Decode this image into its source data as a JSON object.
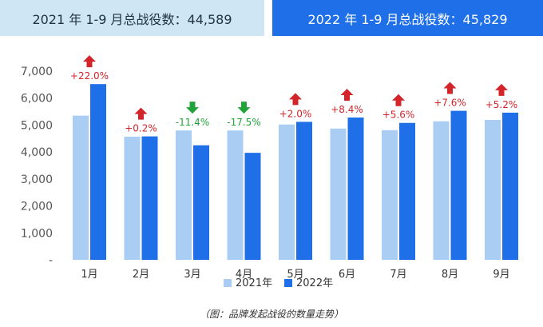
{
  "header": {
    "left": "2021 年 1-9 月总战役数：44,589",
    "right": "2022 年 1-9 月总战役数：45,829"
  },
  "caption": "（图：品牌发起战役的数量走势）",
  "colors": {
    "series_2021": "#a9cdf3",
    "series_2022": "#1e6fe8",
    "up": "#d3242a",
    "down": "#22a33a",
    "banner_left": "#cfe6f5",
    "banner_right": "#1e6fe8"
  },
  "chart_data": {
    "type": "bar",
    "categories": [
      "1月",
      "2月",
      "3月",
      "4月",
      "5月",
      "6月",
      "7月",
      "8月",
      "9月"
    ],
    "series": [
      {
        "name": "2021年",
        "values": [
          5350,
          4570,
          4800,
          4800,
          5020,
          4870,
          4810,
          5140,
          5190
        ]
      },
      {
        "name": "2022年",
        "values": [
          6520,
          4580,
          4250,
          3970,
          5120,
          5280,
          5080,
          5530,
          5460
        ]
      }
    ],
    "annotations": [
      {
        "text": "+22.0%",
        "direction": "up"
      },
      {
        "text": "+0.2%",
        "direction": "up"
      },
      {
        "text": "-11.4%",
        "direction": "down"
      },
      {
        "text": "-17.5%",
        "direction": "down"
      },
      {
        "text": "+2.0%",
        "direction": "up"
      },
      {
        "text": "+8.4%",
        "direction": "up"
      },
      {
        "text": "+5.6%",
        "direction": "up"
      },
      {
        "text": "+7.6%",
        "direction": "up"
      },
      {
        "text": "+5.2%",
        "direction": "up"
      }
    ],
    "yticks": [
      "-",
      "1,000",
      "2,000",
      "3,000",
      "4,000",
      "5,000",
      "6,000",
      "7,000"
    ],
    "ylim": [
      0,
      7000
    ],
    "legend": "bottom-center",
    "grid": false
  }
}
